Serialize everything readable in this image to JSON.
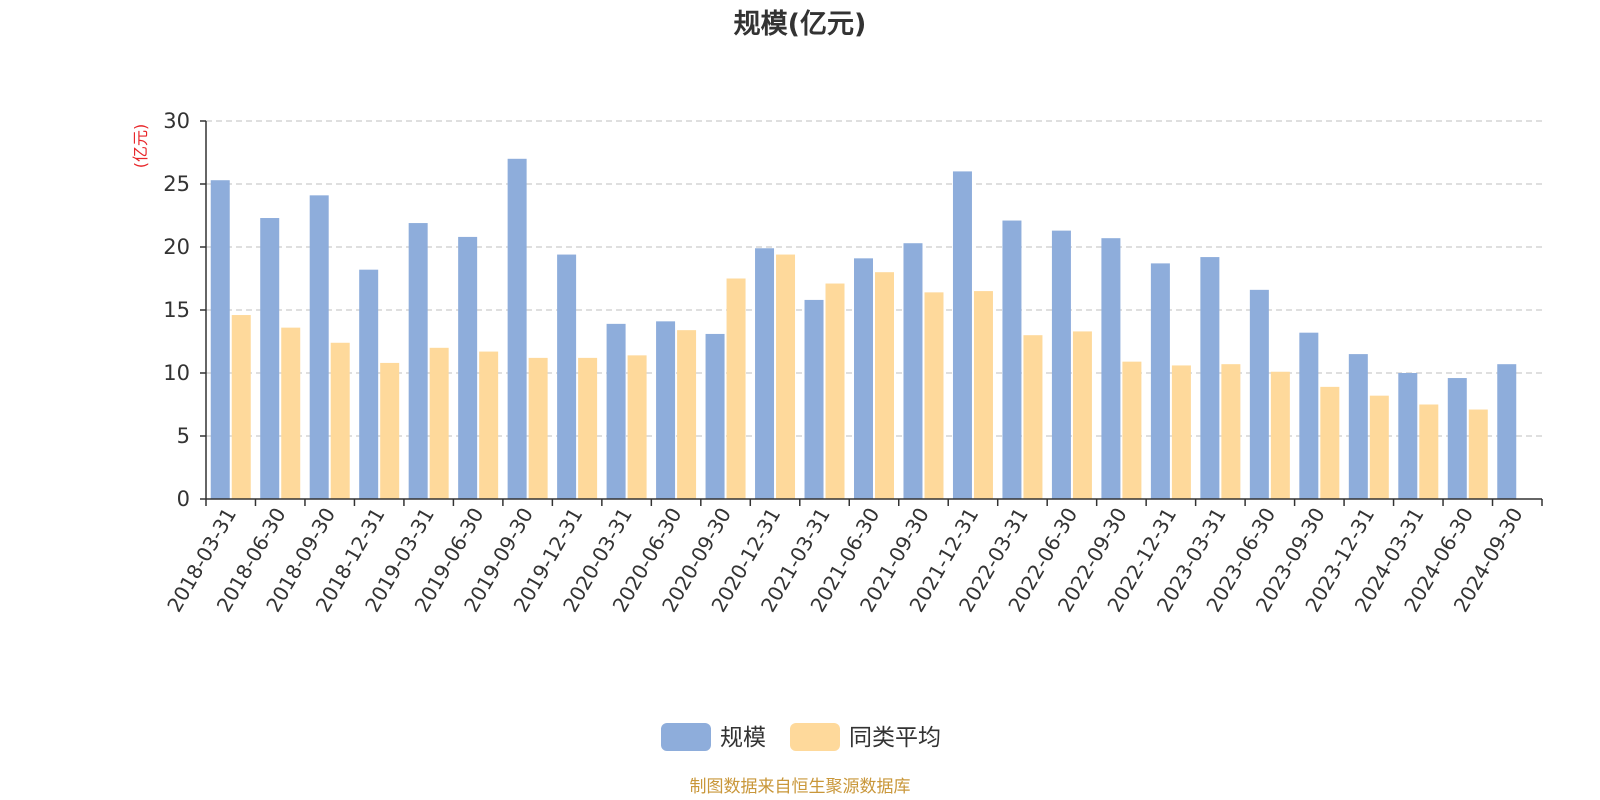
{
  "chart_data": {
    "type": "bar",
    "title": "规模(亿元)",
    "ylabel": "(亿元)",
    "ylim": [
      0,
      30
    ],
    "yticks": [
      0,
      5,
      10,
      15,
      20,
      25,
      30
    ],
    "grid": true,
    "legend_position": "bottom-center",
    "categories": [
      "2018-03-31",
      "2018-06-30",
      "2018-09-30",
      "2018-12-31",
      "2019-03-31",
      "2019-06-30",
      "2019-09-30",
      "2019-12-31",
      "2020-03-31",
      "2020-06-30",
      "2020-09-30",
      "2020-12-31",
      "2021-03-31",
      "2021-06-30",
      "2021-09-30",
      "2021-12-31",
      "2022-03-31",
      "2022-06-30",
      "2022-09-30",
      "2022-12-31",
      "2023-03-31",
      "2023-06-30",
      "2023-09-30",
      "2023-12-31",
      "2024-03-31",
      "2024-06-30",
      "2024-09-30"
    ],
    "series": [
      {
        "name": "规模",
        "color": "#8eaddb",
        "values": [
          25.3,
          22.3,
          24.1,
          18.2,
          21.9,
          20.8,
          27.0,
          19.4,
          13.9,
          14.1,
          13.1,
          19.9,
          15.8,
          19.1,
          20.3,
          26.0,
          22.1,
          21.3,
          20.7,
          18.7,
          19.2,
          16.6,
          13.2,
          11.5,
          10.0,
          9.6,
          10.7
        ]
      },
      {
        "name": "同类平均",
        "color": "#fed99b",
        "values": [
          14.6,
          13.6,
          12.4,
          10.8,
          12.0,
          11.7,
          11.2,
          11.2,
          11.4,
          13.4,
          17.5,
          19.4,
          17.1,
          18.0,
          16.4,
          16.5,
          13.0,
          13.3,
          10.9,
          10.6,
          10.7,
          10.1,
          8.9,
          8.2,
          7.5,
          7.1,
          null
        ]
      }
    ],
    "title_color": "#333333",
    "unit_color": "#e8262a",
    "axis_color": "#333333",
    "grid_color": "#cccccc"
  },
  "footer": {
    "source_text": "制图数据来自恒生聚源数据库",
    "source_color": "#c9973a"
  }
}
